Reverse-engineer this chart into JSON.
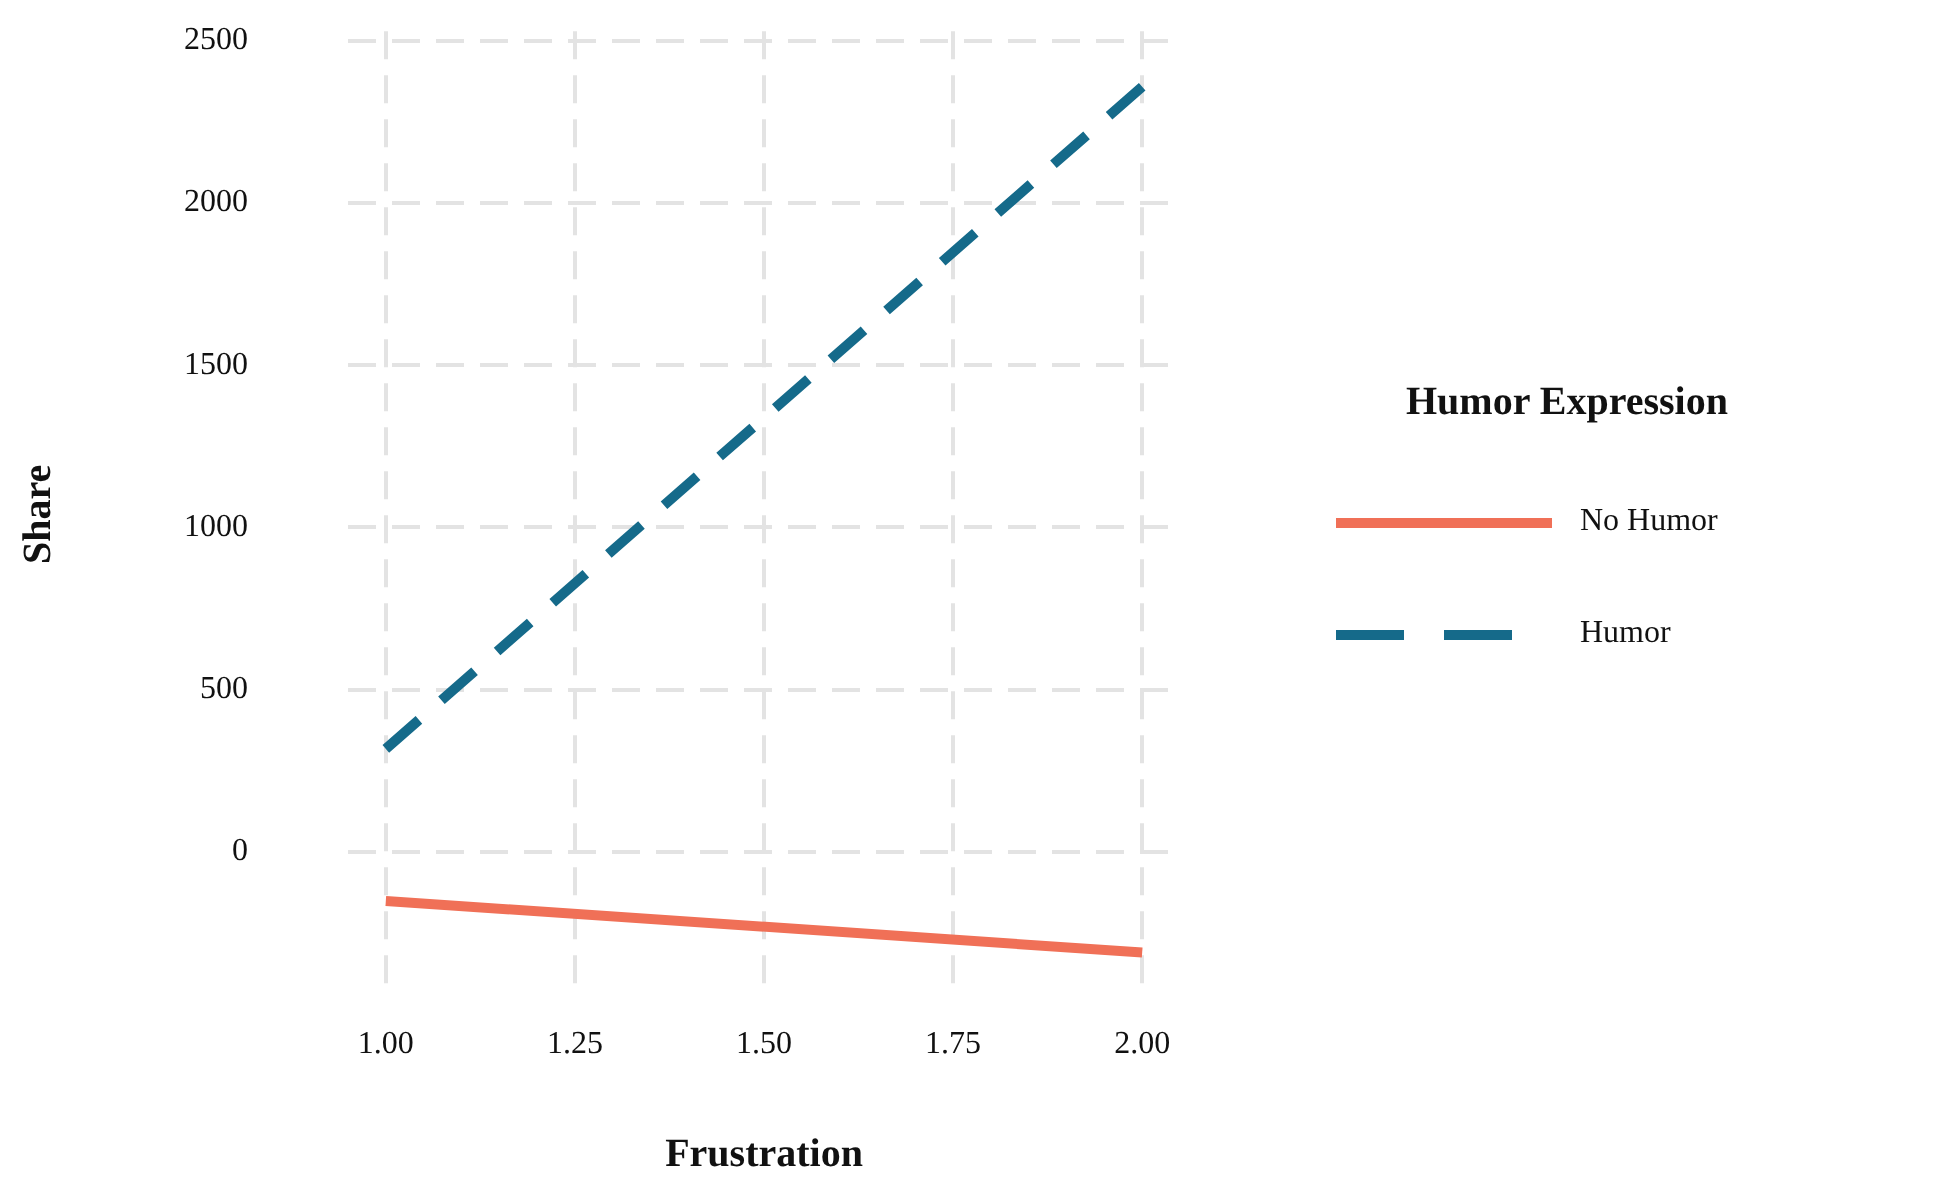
{
  "chart_data": {
    "type": "line",
    "xlabel": "Frustration",
    "ylabel": "Share",
    "legend_title": "Humor Expression",
    "x": [
      1,
      2
    ],
    "series": [
      {
        "name": "No Humor",
        "color": "#f07057",
        "values": [
          -152,
          -311
        ],
        "line_style": "solid"
      },
      {
        "name": "Humor",
        "color": "#156a8a",
        "values": [
          317,
          2359
        ],
        "line_style": "dashed"
      }
    ],
    "xlim": [
      0.95,
      2.05
    ],
    "xticks": [
      {
        "value": 1,
        "label": "1.00"
      },
      {
        "value": 1.25,
        "label": "1.25"
      },
      {
        "value": 1.5,
        "label": "1.50"
      },
      {
        "value": 1.75,
        "label": "1.75"
      },
      {
        "value": 2,
        "label": "2.00"
      }
    ],
    "ylim": [
      -450,
      2530
    ],
    "yticks": [
      0,
      500,
      1000,
      1500,
      2000,
      2500
    ],
    "grid": true,
    "legend": "right",
    "marker": "none"
  }
}
